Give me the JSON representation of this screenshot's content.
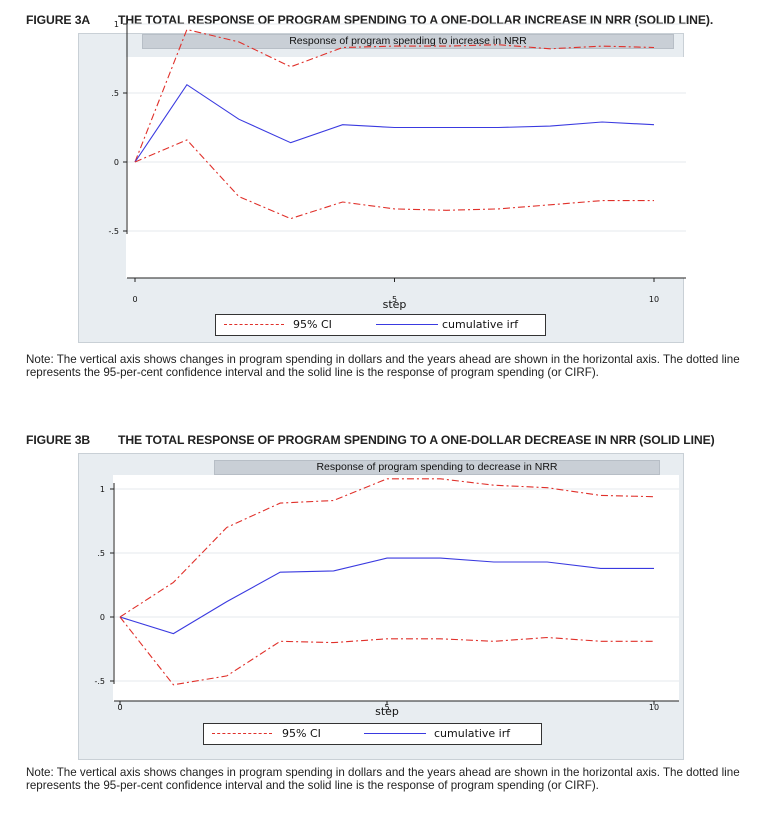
{
  "figures": [
    {
      "label": "FIGURE 3A",
      "title": "THE TOTAL RESPONSE OF PROGRAM SPENDING TO A ONE-DOLLAR INCREASE IN NRR (SOLID LINE).",
      "note": "Note: The vertical axis shows changes in program spending in dollars and the years ahead are shown in the horizontal axis. The dotted line represents the 95-per-cent confidence interval and the solid line is the response of program spending (or CIRF)."
    },
    {
      "label": "FIGURE 3B",
      "title": "THE TOTAL RESPONSE OF PROGRAM SPENDING TO A ONE-DOLLAR DECREASE IN NRR (SOLID LINE)",
      "note": "Note: The vertical axis shows changes in program spending in dollars and the years ahead are shown in the horizontal axis. The dotted line represents the 95-per-cent confidence interval and the solid line is the response of program spending (or CIRF)."
    }
  ],
  "chart_data": [
    {
      "type": "line",
      "title": "Response of program spending to increase in NRR",
      "xlabel": "step",
      "ylabel": "",
      "x": [
        0,
        1,
        2,
        3,
        4,
        5,
        6,
        7,
        8,
        9,
        10
      ],
      "xticks": [
        0,
        5,
        10
      ],
      "xtick_labels": [
        "0",
        "5",
        "10"
      ],
      "yticks": [
        -0.5,
        0,
        0.5,
        1
      ],
      "ytick_labels": [
        "-.5",
        "0",
        ".5",
        "1"
      ],
      "xlim": [
        0,
        10
      ],
      "ylim": [
        -0.5,
        1
      ],
      "grid": true,
      "legend_position": "bottom",
      "colors": {
        "ci": "#e0302a",
        "irf": "#3a3ae0"
      },
      "series": [
        {
          "name": "95% CI",
          "style": "dash-dot",
          "values": [
            0,
            0.96,
            0.87,
            0.69,
            0.83,
            0.84,
            0.84,
            0.85,
            0.82,
            0.84,
            0.83
          ]
        },
        {
          "name": "cumulative irf",
          "style": "solid",
          "values": [
            0,
            0.56,
            0.31,
            0.14,
            0.27,
            0.25,
            0.25,
            0.25,
            0.26,
            0.29,
            0.27
          ]
        },
        {
          "name": "95% CI",
          "style": "dash-dot",
          "values": [
            0,
            0.16,
            -0.25,
            -0.41,
            -0.29,
            -0.34,
            -0.35,
            -0.34,
            -0.31,
            -0.28,
            -0.28
          ]
        }
      ],
      "legend": [
        "95% CI",
        "cumulative irf"
      ]
    },
    {
      "type": "line",
      "title": "Response of program spending to decrease in NRR",
      "xlabel": "step",
      "ylabel": "",
      "x": [
        0,
        1,
        2,
        3,
        4,
        5,
        6,
        7,
        8,
        9,
        10
      ],
      "xticks": [
        0,
        5,
        10
      ],
      "xtick_labels": [
        "0",
        "5",
        "10"
      ],
      "yticks": [
        -0.5,
        0,
        0.5,
        1
      ],
      "ytick_labels": [
        "-.5",
        "0",
        ".5",
        "1"
      ],
      "xlim": [
        0,
        10
      ],
      "ylim": [
        -0.5,
        1
      ],
      "grid": true,
      "legend_position": "bottom",
      "colors": {
        "ci": "#e0302a",
        "irf": "#3a3ae0"
      },
      "series": [
        {
          "name": "95% CI",
          "style": "dash-dot",
          "values": [
            0,
            0.27,
            0.7,
            0.89,
            0.91,
            1.08,
            1.08,
            1.03,
            1.01,
            0.95,
            0.94
          ]
        },
        {
          "name": "cumulative irf",
          "style": "solid",
          "values": [
            0,
            -0.13,
            0.12,
            0.35,
            0.36,
            0.46,
            0.46,
            0.43,
            0.43,
            0.38,
            0.38
          ]
        },
        {
          "name": "95% CI",
          "style": "dash-dot",
          "values": [
            0,
            -0.53,
            -0.46,
            -0.19,
            -0.2,
            -0.17,
            -0.17,
            -0.19,
            -0.16,
            -0.19,
            -0.19
          ]
        }
      ],
      "legend": [
        "95% CI",
        "cumulative irf"
      ]
    }
  ]
}
